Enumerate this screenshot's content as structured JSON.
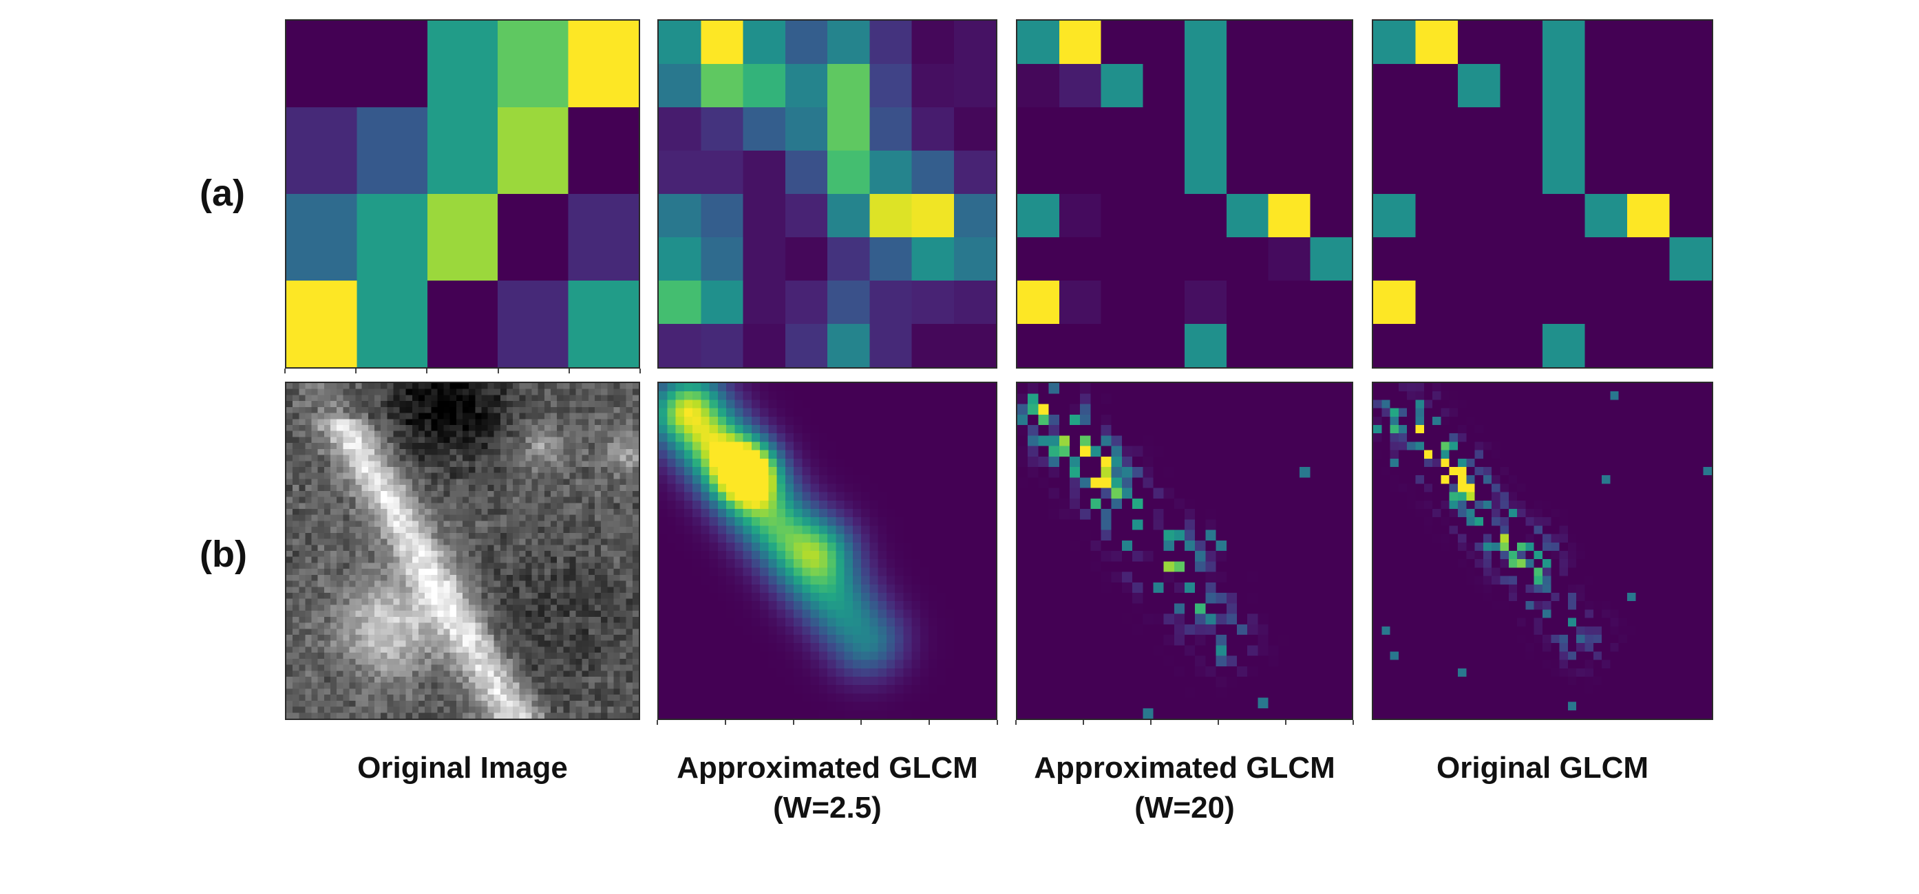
{
  "figure": {
    "row_labels": {
      "a": "(a)",
      "b": "(b)"
    },
    "columns": [
      {
        "line1": "Original Image",
        "line2": ""
      },
      {
        "line1": "Approximated GLCM",
        "line2": "(W=2.5)"
      },
      {
        "line1": "Approximated GLCM",
        "line2": "(W=20)"
      },
      {
        "line1": "Original GLCM",
        "line2": ""
      }
    ]
  },
  "colormap": "viridis",
  "row_a": {
    "original_image": [
      [
        0.0,
        0.0,
        0.55,
        0.75,
        1.0
      ],
      [
        0.12,
        0.28,
        0.55,
        0.85,
        0.0
      ],
      [
        0.35,
        0.55,
        0.85,
        0.0,
        0.12
      ],
      [
        1.0,
        0.55,
        0.0,
        0.12,
        0.55
      ]
    ],
    "approx_glcm_w2_5": [
      [
        0.5,
        1.0,
        0.5,
        0.3,
        0.45,
        0.15,
        0.02,
        0.05
      ],
      [
        0.4,
        0.75,
        0.65,
        0.45,
        0.75,
        0.2,
        0.04,
        0.05
      ],
      [
        0.08,
        0.15,
        0.3,
        0.4,
        0.75,
        0.25,
        0.08,
        0.02
      ],
      [
        0.1,
        0.1,
        0.05,
        0.25,
        0.7,
        0.45,
        0.3,
        0.1
      ],
      [
        0.4,
        0.3,
        0.05,
        0.1,
        0.45,
        0.95,
        0.98,
        0.35
      ],
      [
        0.5,
        0.35,
        0.05,
        0.02,
        0.15,
        0.3,
        0.5,
        0.4
      ],
      [
        0.7,
        0.5,
        0.05,
        0.1,
        0.25,
        0.12,
        0.1,
        0.08
      ],
      [
        0.1,
        0.12,
        0.03,
        0.15,
        0.45,
        0.12,
        0.02,
        0.02
      ]
    ],
    "approx_glcm_w20": [
      [
        0.5,
        1.0,
        0.0,
        0.0,
        0.5,
        0.0,
        0.0,
        0.0
      ],
      [
        0.02,
        0.08,
        0.5,
        0.0,
        0.5,
        0.0,
        0.0,
        0.0
      ],
      [
        0.0,
        0.0,
        0.0,
        0.0,
        0.5,
        0.0,
        0.0,
        0.0
      ],
      [
        0.0,
        0.0,
        0.0,
        0.0,
        0.5,
        0.0,
        0.0,
        0.0
      ],
      [
        0.5,
        0.03,
        0.0,
        0.0,
        0.0,
        0.5,
        1.0,
        0.0
      ],
      [
        0.0,
        0.0,
        0.0,
        0.0,
        0.0,
        0.0,
        0.03,
        0.5
      ],
      [
        1.0,
        0.04,
        0.0,
        0.0,
        0.04,
        0.0,
        0.0,
        0.0
      ],
      [
        0.0,
        0.0,
        0.0,
        0.0,
        0.5,
        0.0,
        0.0,
        0.0
      ]
    ],
    "original_glcm": [
      [
        0.5,
        1.0,
        0.0,
        0.0,
        0.5,
        0.0,
        0.0,
        0.0
      ],
      [
        0.0,
        0.0,
        0.5,
        0.0,
        0.5,
        0.0,
        0.0,
        0.0
      ],
      [
        0.0,
        0.0,
        0.0,
        0.0,
        0.5,
        0.0,
        0.0,
        0.0
      ],
      [
        0.0,
        0.0,
        0.0,
        0.0,
        0.5,
        0.0,
        0.0,
        0.0
      ],
      [
        0.5,
        0.0,
        0.0,
        0.0,
        0.0,
        0.5,
        1.0,
        0.0
      ],
      [
        0.0,
        0.0,
        0.0,
        0.0,
        0.0,
        0.0,
        0.0,
        0.5
      ],
      [
        1.0,
        0.0,
        0.0,
        0.0,
        0.0,
        0.0,
        0.0,
        0.0
      ],
      [
        0.0,
        0.0,
        0.0,
        0.0,
        0.5,
        0.0,
        0.0,
        0.0
      ]
    ]
  }
}
